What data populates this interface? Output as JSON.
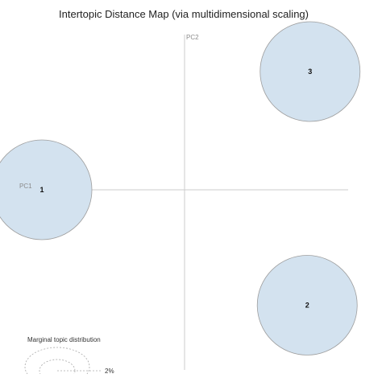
{
  "chart_data": {
    "type": "scatter",
    "title": "Intertopic Distance Map (via multidimensional scaling)",
    "xlabel": "PC1",
    "ylabel": "PC2",
    "grid": false,
    "legend_position": "bottom-left",
    "marginal_legend": {
      "title": "Marginal topic distribution",
      "value_label": "2%"
    },
    "topics": [
      {
        "label": "1",
        "pc1": -1.0,
        "pc2": 0.0
      },
      {
        "label": "2",
        "pc1": 0.86,
        "pc2": -0.82
      },
      {
        "label": "3",
        "pc1": 0.88,
        "pc2": 0.84
      }
    ],
    "xlim": [
      -1.12,
      1.0
    ],
    "ylim": [
      -1.05,
      0.95
    ],
    "colors": {
      "bubble_fill": "#d3e2ef",
      "bubble_stroke": "#9e9e9e",
      "axis": "#cccccc"
    }
  }
}
